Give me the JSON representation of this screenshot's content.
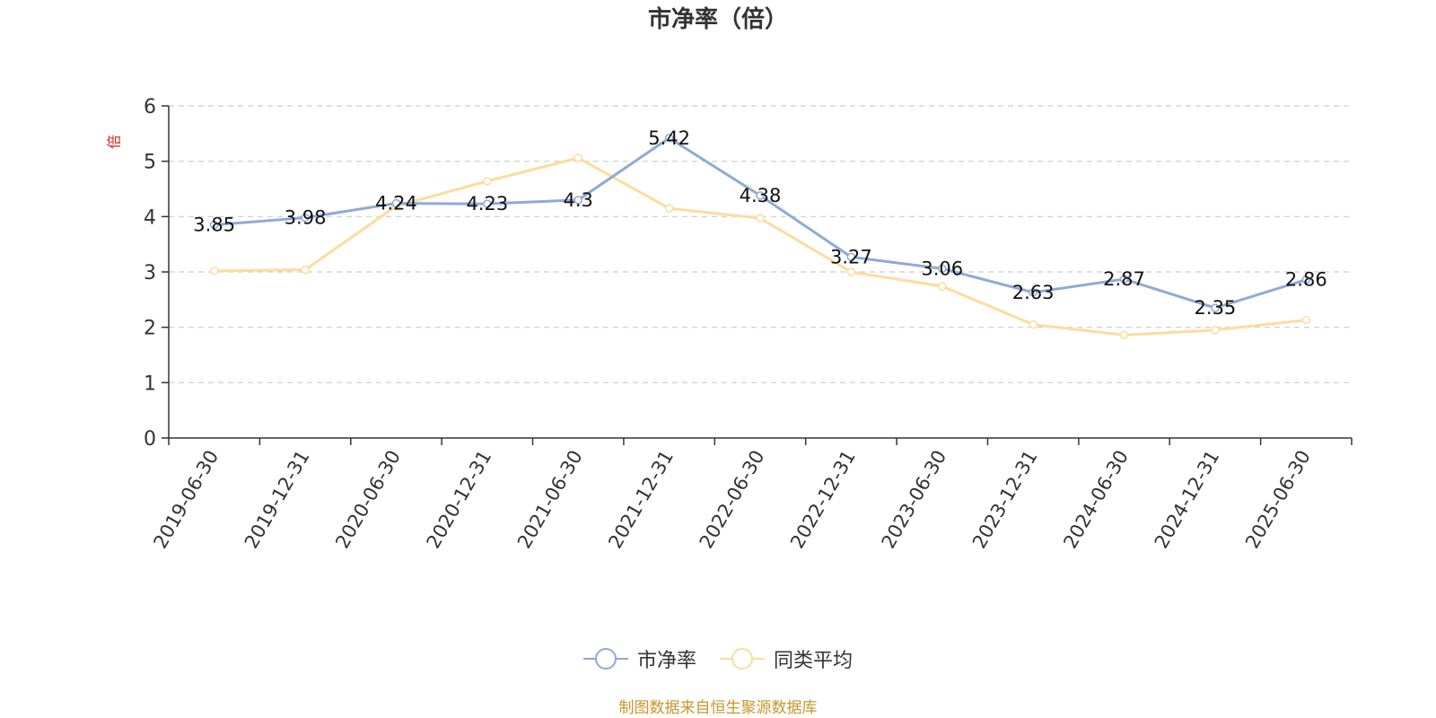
{
  "chart_data": {
    "type": "line",
    "title": "市净率（倍）",
    "ylabel": "倍",
    "xlabel": "",
    "ylim": [
      0,
      6
    ],
    "yticks": [
      0,
      1,
      2,
      3,
      4,
      5,
      6
    ],
    "grid": true,
    "legend_position": "bottom",
    "categories": [
      "2019-06-30",
      "2019-12-31",
      "2020-06-30",
      "2020-12-31",
      "2021-06-30",
      "2021-12-31",
      "2022-06-30",
      "2022-12-31",
      "2023-06-30",
      "2023-12-31",
      "2024-06-30",
      "2024-12-31",
      "2025-06-30"
    ],
    "series": [
      {
        "name": "市净率",
        "color": "#8eaad6",
        "values": [
          3.85,
          3.98,
          4.24,
          4.23,
          4.3,
          5.42,
          4.38,
          3.27,
          3.06,
          2.63,
          2.87,
          2.35,
          2.86
        ],
        "show_labels": true
      },
      {
        "name": "同类平均",
        "color": "#fddc9c",
        "values": [
          3.02,
          3.04,
          4.19,
          4.64,
          5.06,
          4.15,
          3.97,
          3.0,
          2.74,
          2.05,
          1.86,
          1.95,
          2.13
        ],
        "show_labels": false
      }
    ]
  },
  "source_note": "制图数据来自恒生聚源数据库",
  "colors": {
    "axis": "#333333",
    "grid": "#cccccc",
    "ylabel": "#e02020",
    "source": "#c8962a"
  }
}
